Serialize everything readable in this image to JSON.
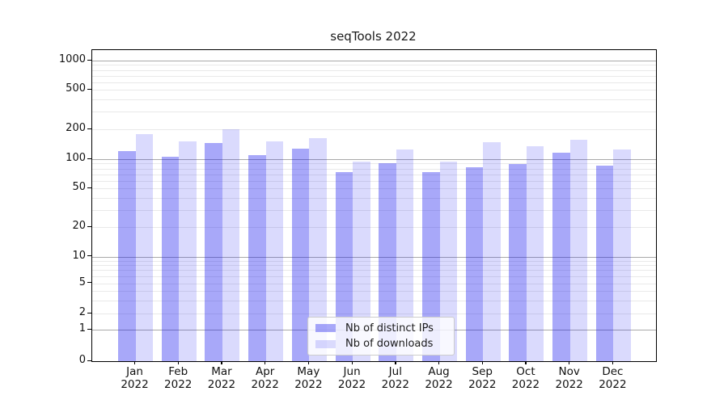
{
  "chart_data": {
    "type": "bar",
    "title": "seqTools 2022",
    "categories": [
      "Jan",
      "Feb",
      "Mar",
      "Apr",
      "May",
      "Jun",
      "Jul",
      "Aug",
      "Sep",
      "Oct",
      "Nov",
      "Dec"
    ],
    "year": "2022",
    "series": [
      {
        "name": "Nb of distinct IPs",
        "color": "rgba(20,20,240,0.37)",
        "color_hex_on_white": "#a9a9f8",
        "values": [
          120,
          105,
          145,
          110,
          127,
          74,
          90,
          74,
          82,
          89,
          116,
          85
        ]
      },
      {
        "name": "Nb of downloads",
        "color": "rgba(20,20,240,0.155)",
        "color_hex_on_white": "#dbdbfa",
        "values": [
          180,
          150,
          200,
          152,
          162,
          94,
          125,
          94,
          148,
          135,
          158,
          126
        ]
      }
    ],
    "xlabel": "",
    "ylabel": "",
    "yscale": "symlog",
    "yticks": [
      0,
      1,
      2,
      5,
      10,
      20,
      50,
      100,
      200,
      500,
      1000
    ],
    "ylim": [
      0,
      1500
    ],
    "grid": true,
    "grid_major_color": "#a9a9a9",
    "grid_minor_color": "#e9e9e9",
    "legend_position": "lower center",
    "axes_color": "#000000",
    "text_color": "#1a1a1a"
  }
}
